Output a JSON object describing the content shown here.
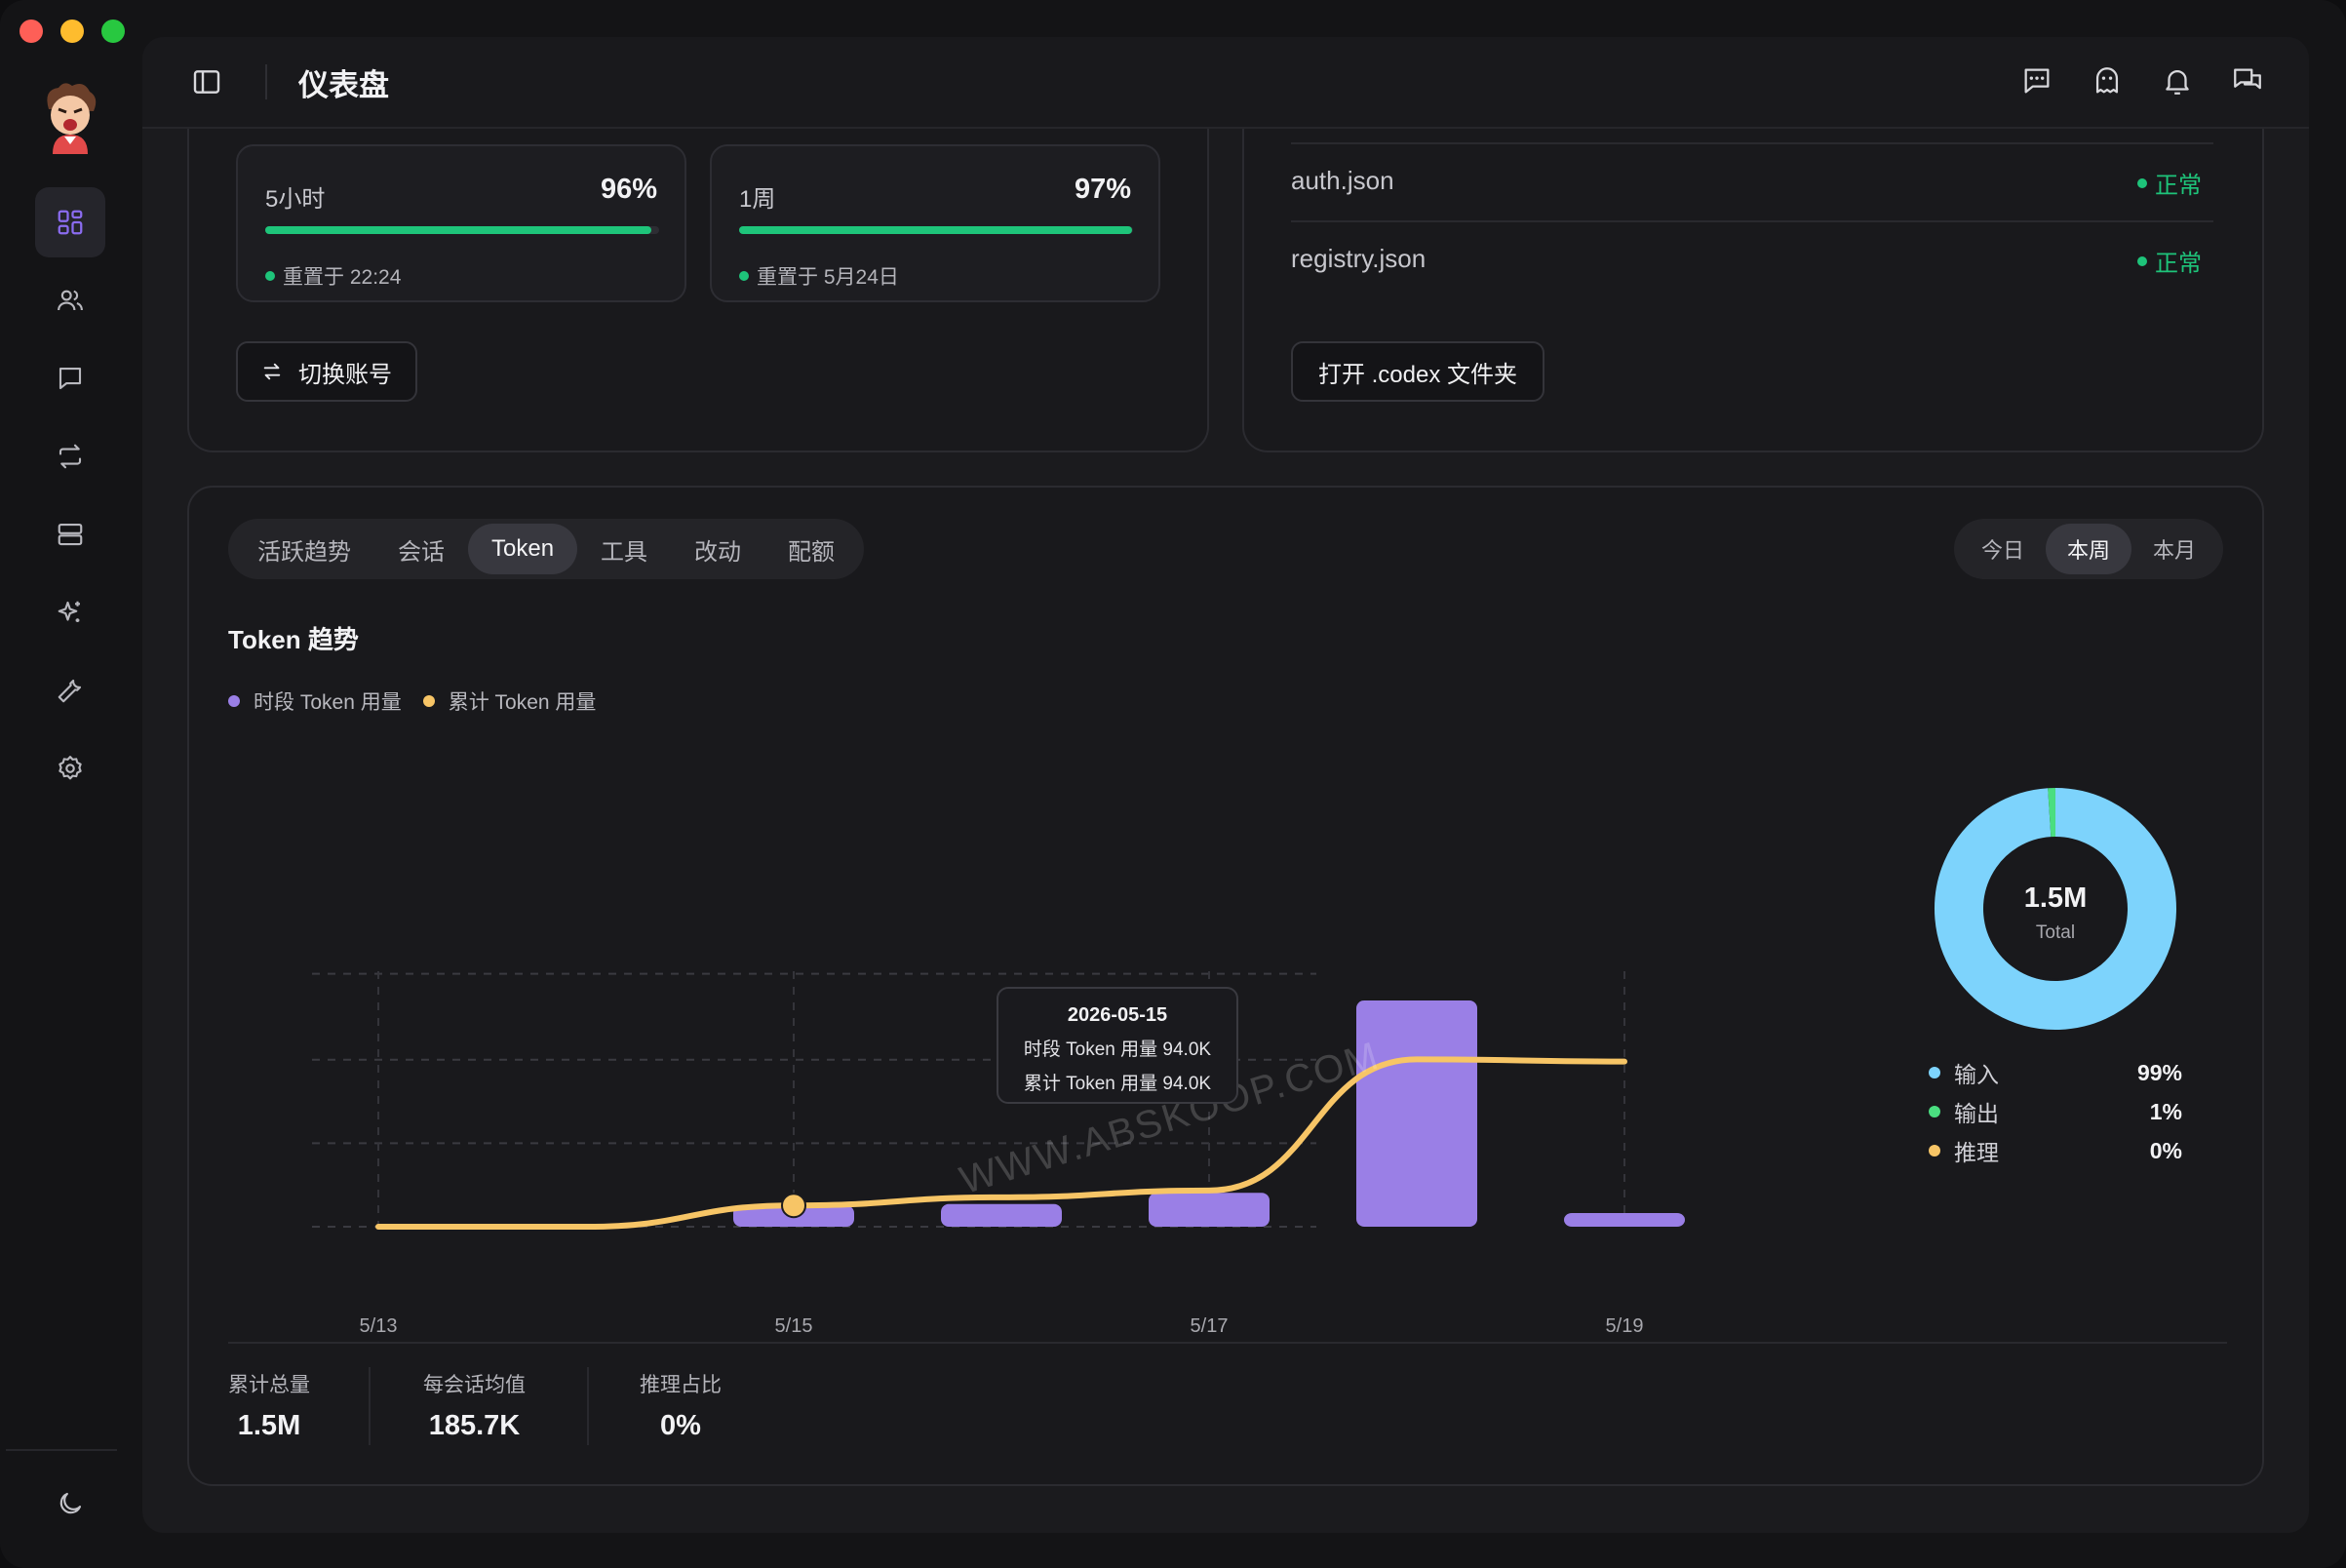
{
  "app": {
    "title": "仪表盘"
  },
  "colors": {
    "accent_purple": "#9a7fe6",
    "accent_yellow": "#f7c566",
    "status_green": "#1ec47a",
    "donut_blue": "#7dd3fc"
  },
  "sidebar": {
    "items": [
      {
        "name": "dashboard-icon",
        "active": true
      },
      {
        "name": "users-icon",
        "active": false
      },
      {
        "name": "chat-icon",
        "active": false
      },
      {
        "name": "switch-icon",
        "active": false
      },
      {
        "name": "server-icon",
        "active": false
      },
      {
        "name": "sparkle-icon",
        "active": false
      },
      {
        "name": "wrench-icon",
        "active": false
      },
      {
        "name": "gear-icon",
        "active": false
      }
    ],
    "theme_icon": "moon-icon"
  },
  "topbar": {
    "icons": [
      "message-icon",
      "ghost-icon",
      "bell-icon",
      "chat-bubbles-icon"
    ]
  },
  "quota": [
    {
      "label": "5小时",
      "percent": "96%",
      "fill": 0.98,
      "reset": "重置于 22:24"
    },
    {
      "label": "1周",
      "percent": "97%",
      "fill": 0.997,
      "reset": "重置于 5月24日"
    }
  ],
  "account": {
    "switch_label": "切换账号"
  },
  "files": {
    "rows": [
      {
        "name": "auth.json",
        "status": "正常"
      },
      {
        "name": "registry.json",
        "status": "正常"
      }
    ],
    "open_label": "打开 .codex 文件夹"
  },
  "tabs": [
    "活跃趋势",
    "会话",
    "Token",
    "工具",
    "改动",
    "配额"
  ],
  "active_tab": "Token",
  "ranges": [
    "今日",
    "本周",
    "本月"
  ],
  "active_range": "本周",
  "chart_title": "Token 趋势",
  "watermark": "WWW.ABSKOOP.COM",
  "tooltip": {
    "date": "2026-05-15",
    "line1": "时段 Token 用量 94.0K",
    "line2": "累计 Token 用量 94.0K"
  },
  "chart_data": {
    "type": "bar",
    "x": [
      "5/13",
      "5/14",
      "5/15",
      "5/16",
      "5/17",
      "5/18",
      "5/19"
    ],
    "x_tick_labels": [
      "5/13",
      "5/15",
      "5/17",
      "5/19"
    ],
    "series": [
      {
        "name": "时段 Token 用量",
        "kind": "bar",
        "color": "#9a7fe6",
        "values": [
          0,
          0,
          94,
          100,
          150,
          1000,
          40
        ]
      },
      {
        "name": "累计 Token 用量",
        "kind": "line",
        "color": "#f7c566",
        "values": [
          0,
          0,
          94,
          130,
          160,
          740,
          730
        ]
      }
    ],
    "grid": true,
    "legend": "top-left"
  },
  "donut": {
    "total": "1.5M",
    "total_label": "Total",
    "slices": [
      {
        "name": "输入",
        "value": "99%",
        "color": "#7dd3fc",
        "share": 0.99
      },
      {
        "name": "输出",
        "value": "1%",
        "color": "#4ade80",
        "share": 0.01
      },
      {
        "name": "推理",
        "value": "0%",
        "color": "#f7c566",
        "share": 0
      }
    ]
  },
  "stats": [
    {
      "label": "累计总量",
      "value": "1.5M"
    },
    {
      "label": "每会话均值",
      "value": "185.7K"
    },
    {
      "label": "推理占比",
      "value": "0%"
    }
  ]
}
